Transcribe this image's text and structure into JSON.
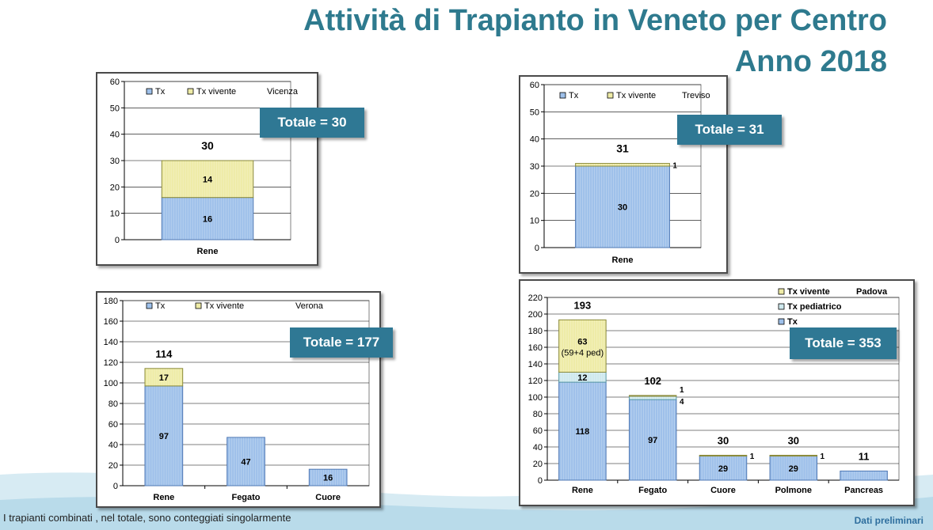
{
  "header": {
    "title_line1": "Attività di Trapianto in Veneto per Centro",
    "title_line2": "Anno 2018"
  },
  "footnote": "I trapianti combinati , nel totale, sono conteggiati singolarmente",
  "preliminary": "Dati preliminari",
  "colors": {
    "tx": "#9ec0ea",
    "tx_vivente": "#eeeba6",
    "tx_pediatrico": "#cfe9ee",
    "badge": "#2f7894",
    "title": "#2e7a8e"
  },
  "chart_data": [
    {
      "type": "bar",
      "stacked": true,
      "center": "Vicenza",
      "total_badge": "Totale = 30",
      "categories": [
        "Rene"
      ],
      "ylim": [
        0,
        60
      ],
      "yticks": [
        0,
        10,
        20,
        30,
        40,
        50,
        60
      ],
      "series": [
        {
          "name": "Tx",
          "values": [
            16
          ]
        },
        {
          "name": "Tx vivente",
          "values": [
            14
          ]
        }
      ],
      "totals": [
        30
      ],
      "grid": true,
      "legend": "top"
    },
    {
      "type": "bar",
      "stacked": true,
      "center": "Treviso",
      "total_badge": "Totale = 31",
      "categories": [
        "Rene"
      ],
      "ylim": [
        0,
        60
      ],
      "yticks": [
        0,
        10,
        20,
        30,
        40,
        50,
        60
      ],
      "series": [
        {
          "name": "Tx",
          "values": [
            30
          ]
        },
        {
          "name": "Tx vivente",
          "values": [
            1
          ]
        }
      ],
      "totals": [
        31
      ],
      "grid": true,
      "legend": "top"
    },
    {
      "type": "bar",
      "stacked": true,
      "center": "Verona",
      "total_badge": "Totale = 177",
      "categories": [
        "Rene",
        "Fegato",
        "Cuore"
      ],
      "ylim": [
        0,
        180
      ],
      "yticks": [
        0,
        20,
        40,
        60,
        80,
        100,
        120,
        140,
        160,
        180
      ],
      "series": [
        {
          "name": "Tx",
          "values": [
            97,
            47,
            16
          ]
        },
        {
          "name": "Tx vivente",
          "values": [
            17,
            0,
            0
          ]
        }
      ],
      "totals": [
        114,
        null,
        null
      ],
      "grid": true,
      "legend": "top"
    },
    {
      "type": "bar",
      "stacked": true,
      "center": "Padova",
      "total_badge": "Totale = 353",
      "categories": [
        "Rene",
        "Fegato",
        "Cuore",
        "Polmone",
        "Pancreas"
      ],
      "ylim": [
        0,
        220
      ],
      "yticks": [
        0,
        20,
        40,
        60,
        80,
        100,
        120,
        140,
        160,
        180,
        200,
        220
      ],
      "series": [
        {
          "name": "Tx",
          "values": [
            118,
            97,
            29,
            29,
            11
          ]
        },
        {
          "name": "Tx pediatrico",
          "values": [
            12,
            4,
            0,
            0,
            0
          ]
        },
        {
          "name": "Tx vivente",
          "values": [
            63,
            1,
            1,
            1,
            0
          ]
        }
      ],
      "totals": [
        193,
        102,
        30,
        30,
        11
      ],
      "annotations": [
        "(59+4 ped)"
      ],
      "grid": true,
      "legend": "top-right"
    }
  ]
}
